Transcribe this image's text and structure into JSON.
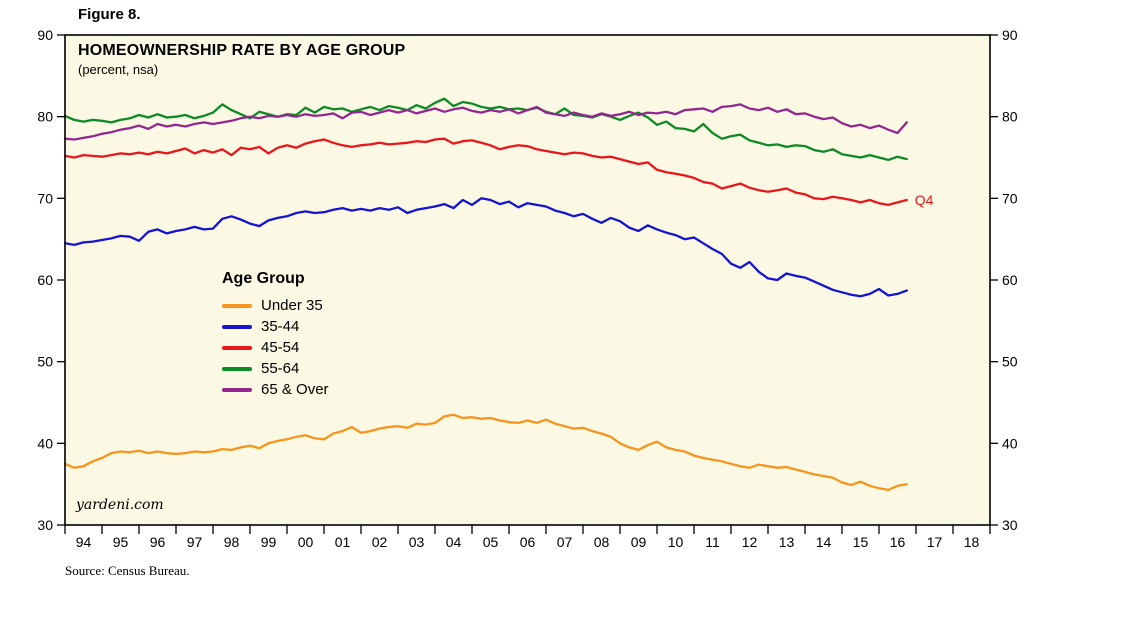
{
  "figure_label": "Figure 8.",
  "annotation_q4": "Q4",
  "watermark": "yardeni.com",
  "source": "Source: Census Bureau.",
  "chart_data": {
    "type": "line",
    "title": "HOMEOWNERSHIP RATE BY AGE GROUP",
    "subtitle": "(percent, nsa)",
    "legend_title": "Age Group",
    "legend_position": "inside-left-middle",
    "grid": false,
    "plot_background": "#FBF9E3",
    "frame_color": "#000000",
    "ylim": [
      30,
      90
    ],
    "y_ticks": [
      30,
      40,
      50,
      60,
      70,
      80,
      90
    ],
    "x_range": [
      1994,
      2019
    ],
    "x_tick_labels": [
      "94",
      "95",
      "96",
      "97",
      "98",
      "99",
      "00",
      "01",
      "02",
      "03",
      "04",
      "05",
      "06",
      "07",
      "08",
      "09",
      "10",
      "11",
      "12",
      "13",
      "14",
      "15",
      "16",
      "17",
      "18"
    ],
    "x_start": 1994.0,
    "x_step": 0.25,
    "frequency": "quarterly",
    "xlabel": "",
    "ylabel": "",
    "end_label": {
      "text": "Q4",
      "series": "45-54"
    },
    "series": [
      {
        "name": "Under 35",
        "color": "#F7941E",
        "values": [
          37.5,
          37.0,
          37.2,
          37.8,
          38.2,
          38.8,
          39.0,
          38.9,
          39.1,
          38.8,
          39.0,
          38.8,
          38.7,
          38.8,
          39.0,
          38.9,
          39.0,
          39.3,
          39.2,
          39.5,
          39.7,
          39.4,
          40.0,
          40.3,
          40.5,
          40.8,
          41.0,
          40.6,
          40.5,
          41.2,
          41.5,
          42.0,
          41.3,
          41.5,
          41.8,
          42.0,
          42.1,
          41.9,
          42.4,
          42.3,
          42.5,
          43.3,
          43.5,
          43.1,
          43.2,
          43.0,
          43.1,
          42.8,
          42.6,
          42.5,
          42.8,
          42.5,
          42.9,
          42.4,
          42.1,
          41.8,
          41.9,
          41.5,
          41.2,
          40.8,
          40.0,
          39.5,
          39.2,
          39.8,
          40.2,
          39.5,
          39.2,
          39.0,
          38.5,
          38.2,
          38.0,
          37.8,
          37.5,
          37.2,
          37.0,
          37.4,
          37.2,
          37.0,
          37.1,
          36.8,
          36.5,
          36.2,
          36.0,
          35.8,
          35.2,
          34.9,
          35.3,
          34.8,
          34.5,
          34.3,
          34.8,
          35.0
        ]
      },
      {
        "name": "35-44",
        "color": "#1414D2",
        "values": [
          64.5,
          64.3,
          64.6,
          64.7,
          64.9,
          65.1,
          65.4,
          65.3,
          64.8,
          65.9,
          66.2,
          65.7,
          66.0,
          66.2,
          66.5,
          66.2,
          66.3,
          67.5,
          67.8,
          67.4,
          66.9,
          66.6,
          67.3,
          67.6,
          67.8,
          68.2,
          68.4,
          68.2,
          68.3,
          68.6,
          68.8,
          68.5,
          68.7,
          68.5,
          68.8,
          68.6,
          68.9,
          68.2,
          68.6,
          68.8,
          69.0,
          69.3,
          68.8,
          69.8,
          69.2,
          70.0,
          69.8,
          69.3,
          69.6,
          68.9,
          69.4,
          69.2,
          69.0,
          68.5,
          68.2,
          67.8,
          68.1,
          67.5,
          67.0,
          67.6,
          67.2,
          66.4,
          66.0,
          66.7,
          66.2,
          65.8,
          65.5,
          65.0,
          65.2,
          64.5,
          63.8,
          63.2,
          62.0,
          61.5,
          62.2,
          61.0,
          60.2,
          60.0,
          60.8,
          60.5,
          60.3,
          59.8,
          59.3,
          58.8,
          58.5,
          58.2,
          58.0,
          58.3,
          58.9,
          58.1,
          58.3,
          58.7
        ]
      },
      {
        "name": "45-54",
        "color": "#E8171E",
        "values": [
          75.2,
          75.0,
          75.3,
          75.2,
          75.1,
          75.3,
          75.5,
          75.4,
          75.6,
          75.4,
          75.7,
          75.5,
          75.8,
          76.1,
          75.5,
          75.9,
          75.6,
          76.0,
          75.3,
          76.2,
          76.0,
          76.3,
          75.5,
          76.2,
          76.5,
          76.2,
          76.7,
          77.0,
          77.2,
          76.8,
          76.5,
          76.3,
          76.5,
          76.6,
          76.8,
          76.6,
          76.7,
          76.8,
          77.0,
          76.9,
          77.2,
          77.3,
          76.7,
          77.0,
          77.1,
          76.8,
          76.5,
          76.0,
          76.3,
          76.5,
          76.4,
          76.0,
          75.8,
          75.6,
          75.4,
          75.6,
          75.5,
          75.2,
          75.0,
          75.1,
          74.8,
          74.5,
          74.2,
          74.4,
          73.5,
          73.2,
          73.0,
          72.8,
          72.5,
          72.0,
          71.8,
          71.2,
          71.5,
          71.8,
          71.3,
          71.0,
          70.8,
          71.0,
          71.2,
          70.7,
          70.5,
          70.0,
          69.9,
          70.2,
          70.0,
          69.8,
          69.5,
          69.8,
          69.4,
          69.2,
          69.5,
          69.8
        ]
      },
      {
        "name": "55-64",
        "color": "#0C8A25",
        "values": [
          80.1,
          79.6,
          79.4,
          79.6,
          79.5,
          79.3,
          79.6,
          79.8,
          80.2,
          79.9,
          80.3,
          79.9,
          80.0,
          80.2,
          79.8,
          80.1,
          80.5,
          81.5,
          80.8,
          80.3,
          79.8,
          80.6,
          80.3,
          80.0,
          80.3,
          80.2,
          81.1,
          80.5,
          81.2,
          80.9,
          81.0,
          80.6,
          80.9,
          81.2,
          80.8,
          81.3,
          81.1,
          80.8,
          81.4,
          81.0,
          81.7,
          82.2,
          81.3,
          81.8,
          81.6,
          81.2,
          81.0,
          81.2,
          80.9,
          81.0,
          80.8,
          81.1,
          80.6,
          80.3,
          81.0,
          80.2,
          80.1,
          79.9,
          80.3,
          80.0,
          79.6,
          80.1,
          80.5,
          79.9,
          79.0,
          79.4,
          78.6,
          78.5,
          78.2,
          79.1,
          78.0,
          77.3,
          77.6,
          77.8,
          77.1,
          76.8,
          76.5,
          76.6,
          76.3,
          76.5,
          76.4,
          75.9,
          75.7,
          76.0,
          75.4,
          75.2,
          75.0,
          75.3,
          75.0,
          74.7,
          75.1,
          74.8
        ]
      },
      {
        "name": "65 & Over",
        "color": "#93278F",
        "values": [
          77.3,
          77.2,
          77.4,
          77.6,
          77.9,
          78.1,
          78.4,
          78.6,
          78.9,
          78.5,
          79.1,
          78.8,
          79.0,
          78.8,
          79.1,
          79.3,
          79.1,
          79.3,
          79.5,
          79.8,
          80.0,
          79.8,
          80.1,
          80.0,
          80.2,
          80.0,
          80.3,
          80.1,
          80.2,
          80.4,
          79.8,
          80.5,
          80.6,
          80.2,
          80.5,
          80.8,
          80.5,
          80.8,
          80.4,
          80.7,
          81.0,
          80.6,
          80.9,
          81.1,
          80.7,
          80.5,
          80.8,
          80.6,
          80.9,
          80.4,
          80.8,
          81.2,
          80.5,
          80.3,
          80.1,
          80.5,
          80.2,
          80.0,
          80.4,
          80.1,
          80.3,
          80.6,
          80.2,
          80.5,
          80.4,
          80.6,
          80.3,
          80.8,
          80.9,
          81.0,
          80.6,
          81.2,
          81.3,
          81.5,
          81.0,
          80.8,
          81.1,
          80.6,
          80.9,
          80.3,
          80.4,
          80.0,
          79.7,
          79.9,
          79.2,
          78.8,
          79.0,
          78.6,
          78.9,
          78.4,
          78.0,
          79.3
        ]
      }
    ]
  }
}
